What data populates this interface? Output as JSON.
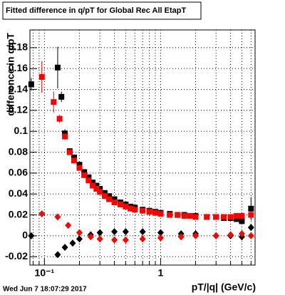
{
  "chart_data": {
    "type": "scatter",
    "title": "Fitted difference in q/pT for Global Rec All EtapT",
    "ylabel": "difference in q/pT",
    "xlabel": "pT/|q| (GeV/c)",
    "footer": "Wed Jun  7 18:07:29 2017",
    "xscale": "log",
    "grid": true,
    "xlim": [
      0.075,
      6.5
    ],
    "ylim": [
      -0.028,
      0.197
    ],
    "xticks": [
      {
        "value": 0.1,
        "label": "10⁻¹"
      },
      1
    ],
    "xminorticks": [
      0.08,
      0.09,
      0.2,
      0.3,
      0.4,
      0.5,
      0.6,
      0.7,
      0.8,
      0.9,
      2,
      3,
      4,
      5,
      6
    ],
    "yticks": [
      -0.02,
      0,
      0.02,
      0.04,
      0.06,
      0.08,
      0.1,
      0.12,
      0.14,
      0.16,
      0.18
    ],
    "series": [
      {
        "color": "#000000",
        "marker": "square",
        "x": [
          0.077,
          0.13,
          0.14,
          0.15,
          0.165,
          0.18,
          0.2,
          0.22,
          0.24,
          0.26,
          0.28,
          0.3,
          0.33,
          0.36,
          0.4,
          0.45,
          0.5,
          0.55,
          0.6,
          0.7,
          0.8,
          0.9,
          1,
          1.2,
          1.4,
          1.6,
          1.8,
          2,
          2.5,
          3,
          3.5,
          4,
          4.5,
          5,
          6
        ],
        "values": [
          0.145,
          0.161,
          0.133,
          0.098,
          0.081,
          0.075,
          0.068,
          0.061,
          0.056,
          0.051,
          0.048,
          0.045,
          0.041,
          0.038,
          0.035,
          0.032,
          0.03,
          0.028,
          0.027,
          0.025,
          0.024,
          0.023,
          0.022,
          0.021,
          0.02,
          0.02,
          0.019,
          0.019,
          0.018,
          0.018,
          0.017,
          0.017,
          0.016,
          0.014,
          0.026
        ],
        "errors": [
          0.006,
          0.02,
          0.005,
          0.004,
          0.002,
          0.002,
          0.001,
          0.001,
          0.001,
          0.001,
          0.001,
          0.001,
          0.001,
          0.001,
          0.001,
          0.001,
          0.001,
          0.001,
          0.001,
          0.001,
          0.001,
          0.001,
          0.001,
          0.001,
          0.001,
          0.001,
          0.001,
          0.001,
          0.001,
          0.001,
          0.001,
          0.001,
          0.001,
          0.003,
          0.011
        ]
      },
      {
        "color": "#ff0000",
        "marker": "square",
        "x": [
          0.095,
          0.12,
          0.135,
          0.15,
          0.165,
          0.18,
          0.2,
          0.22,
          0.24,
          0.26,
          0.28,
          0.3,
          0.33,
          0.36,
          0.4,
          0.45,
          0.5,
          0.55,
          0.6,
          0.7,
          0.8,
          0.9,
          1,
          1.2,
          1.4,
          1.6,
          1.8,
          2,
          2.5,
          3,
          3.5,
          4,
          4.5,
          5,
          6
        ],
        "values": [
          0.152,
          0.128,
          0.112,
          0.095,
          0.08,
          0.072,
          0.065,
          0.058,
          0.053,
          0.048,
          0.045,
          0.042,
          0.038,
          0.035,
          0.032,
          0.03,
          0.028,
          0.026,
          0.025,
          0.024,
          0.023,
          0.022,
          0.021,
          0.02,
          0.02,
          0.019,
          0.019,
          0.018,
          0.018,
          0.018,
          0.018,
          0.018,
          0.019,
          0.019,
          0.02
        ],
        "errors": [
          0.015,
          0.01,
          0.004,
          0.003,
          0.002,
          0.001,
          0.001,
          0.001,
          0.001,
          0.001,
          0.001,
          0.001,
          0.001,
          0.001,
          0.001,
          0.001,
          0.001,
          0.001,
          0.001,
          0.001,
          0.001,
          0.001,
          0.001,
          0.001,
          0.001,
          0.001,
          0.001,
          0.001,
          0.001,
          0.001,
          0.001,
          0.001,
          0.001,
          0.001,
          0.003
        ]
      },
      {
        "color": "#000000",
        "marker": "diamond",
        "x": [
          0.077,
          0.13,
          0.15,
          0.175,
          0.2,
          0.25,
          0.3,
          0.4,
          0.5,
          0.7,
          1,
          1.5,
          2,
          3,
          4,
          5,
          6
        ],
        "values": [
          0,
          -0.018,
          -0.011,
          -0.007,
          -0.003,
          0.001,
          0.003,
          0.004,
          0.004,
          0.004,
          0.003,
          0.002,
          0.002,
          0,
          0,
          -0.001,
          0.008
        ]
      },
      {
        "color": "#ff0000",
        "marker": "diamond",
        "x": [
          0.095,
          0.13,
          0.16,
          0.2,
          0.25,
          0.3,
          0.4,
          0.5,
          0.7,
          1,
          1.5,
          2,
          3,
          4,
          5,
          6
        ],
        "values": [
          0.021,
          0.018,
          0.01,
          0.003,
          -0.001,
          -0.003,
          -0.004,
          -0.004,
          -0.003,
          -0.002,
          -0.001,
          0,
          0,
          0.001,
          0.002,
          0
        ]
      }
    ]
  }
}
